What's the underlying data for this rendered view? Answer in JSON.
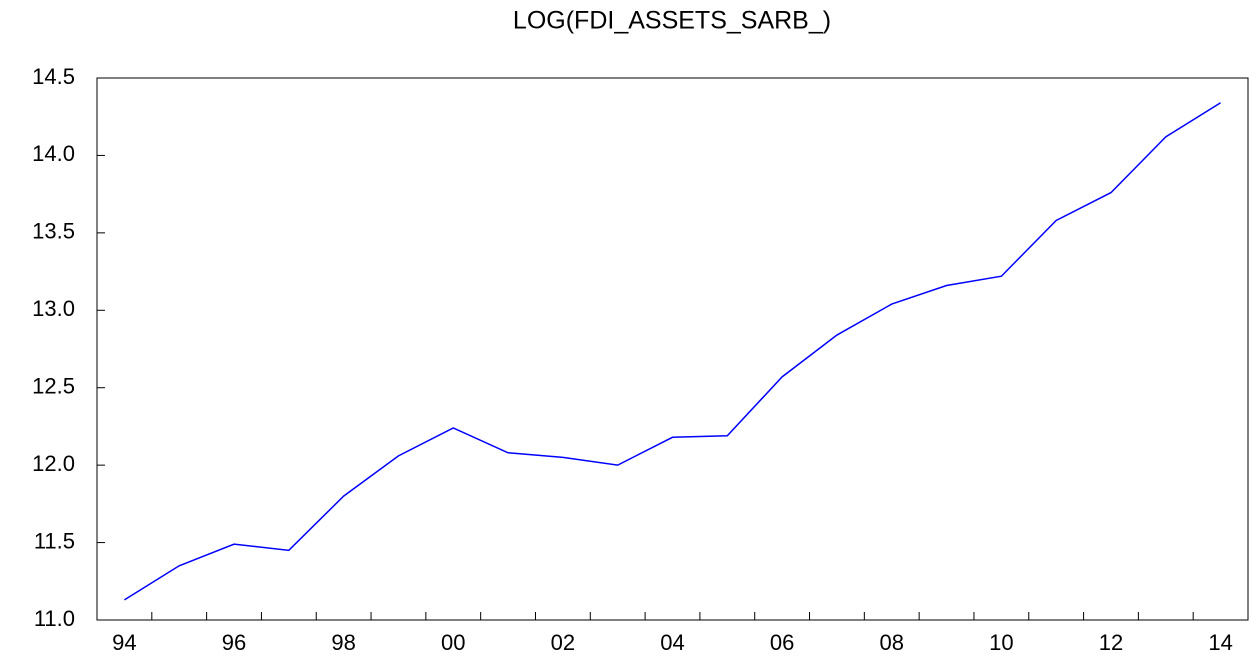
{
  "chart_data": {
    "type": "line",
    "title": "LOG(FDI_ASSETS_SARB_)",
    "categories": [
      "94",
      null,
      "96",
      null,
      "98",
      null,
      "00",
      null,
      "02",
      null,
      "04",
      null,
      "06",
      null,
      "08",
      null,
      "10",
      null,
      "12",
      null,
      "14"
    ],
    "series": [
      {
        "color": "#0000ff",
        "values": [
          11.13,
          11.35,
          11.49,
          11.45,
          11.8,
          12.06,
          12.24,
          12.08,
          12.05,
          12.0,
          12.18,
          12.19,
          12.57,
          12.84,
          13.04,
          13.16,
          13.22,
          13.58,
          13.76,
          14.12,
          14.34
        ]
      }
    ],
    "ylim": [
      11.0,
      14.5
    ],
    "yticks": [
      {
        "value": 11,
        "label": "11.0"
      },
      11.5,
      {
        "value": 12,
        "label": "12.0"
      },
      12.5,
      {
        "value": 13,
        "label": "13.0"
      },
      13.5,
      {
        "value": 14,
        "label": "14.0"
      },
      14.5
    ]
  }
}
